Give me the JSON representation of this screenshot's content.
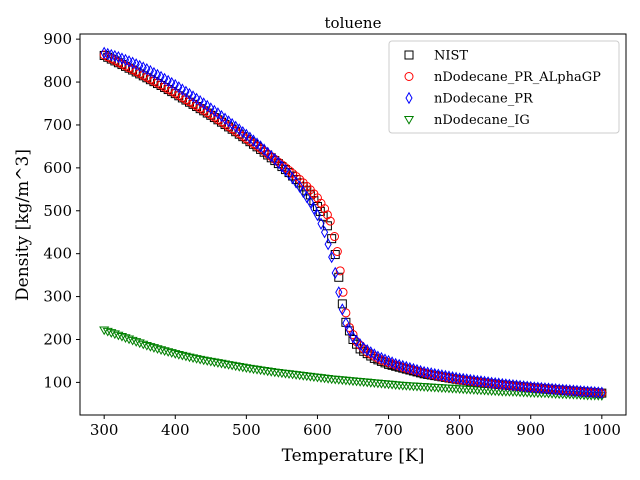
{
  "chart_data": {
    "type": "scatter",
    "title": "toluene",
    "xlabel": "Temperature [K]",
    "ylabel": "Density [kg/m^3]",
    "xlim": [
      266,
      1034
    ],
    "ylim": [
      24,
      912
    ],
    "xticks": [
      300,
      400,
      500,
      600,
      700,
      800,
      900,
      1000
    ],
    "yticks": [
      100,
      200,
      300,
      400,
      500,
      600,
      700,
      800,
      900
    ],
    "grid": false,
    "legend_position": "top-right",
    "series": [
      {
        "name": "NIST",
        "marker": "square",
        "color": "#000000",
        "points": [
          [
            300,
            862
          ],
          [
            320,
            845
          ],
          [
            340,
            828
          ],
          [
            360,
            810
          ],
          [
            380,
            792
          ],
          [
            400,
            773
          ],
          [
            420,
            753
          ],
          [
            440,
            733
          ],
          [
            460,
            712
          ],
          [
            480,
            690
          ],
          [
            500,
            667
          ],
          [
            520,
            643
          ],
          [
            540,
            617
          ],
          [
            560,
            589
          ],
          [
            575,
            565
          ],
          [
            590,
            537
          ],
          [
            600,
            510
          ],
          [
            608,
            487
          ],
          [
            614,
            465
          ],
          [
            620,
            435
          ],
          [
            625,
            398
          ],
          [
            630,
            345
          ],
          [
            635,
            283
          ],
          [
            640,
            240
          ],
          [
            650,
            200
          ],
          [
            660,
            178
          ],
          [
            680,
            156
          ],
          [
            700,
            142
          ],
          [
            750,
            120
          ],
          [
            800,
            106
          ],
          [
            850,
            96
          ],
          [
            900,
            88
          ],
          [
            950,
            81
          ],
          [
            1000,
            75
          ]
        ]
      },
      {
        "name": "nDodecane_PR_ALphaGP",
        "marker": "circle",
        "color": "#ff0000",
        "points": [
          [
            300,
            863
          ],
          [
            320,
            846
          ],
          [
            340,
            829
          ],
          [
            360,
            811
          ],
          [
            380,
            793
          ],
          [
            400,
            774
          ],
          [
            420,
            754
          ],
          [
            440,
            734
          ],
          [
            460,
            713
          ],
          [
            480,
            691
          ],
          [
            500,
            668
          ],
          [
            520,
            645
          ],
          [
            540,
            620
          ],
          [
            560,
            594
          ],
          [
            575,
            573
          ],
          [
            590,
            549
          ],
          [
            600,
            530
          ],
          [
            610,
            505
          ],
          [
            618,
            476
          ],
          [
            624,
            440
          ],
          [
            628,
            405
          ],
          [
            632,
            360
          ],
          [
            636,
            310
          ],
          [
            640,
            262
          ],
          [
            645,
            228
          ],
          [
            655,
            195
          ],
          [
            670,
            170
          ],
          [
            690,
            152
          ],
          [
            720,
            135
          ],
          [
            760,
            118
          ],
          [
            800,
            106
          ],
          [
            850,
            96
          ],
          [
            900,
            88
          ],
          [
            950,
            81
          ],
          [
            1000,
            75
          ]
        ]
      },
      {
        "name": "nDodecane_PR",
        "marker": "diamond",
        "color": "#0000ff",
        "points": [
          [
            300,
            868
          ],
          [
            320,
            858
          ],
          [
            340,
            845
          ],
          [
            360,
            830
          ],
          [
            380,
            812
          ],
          [
            400,
            793
          ],
          [
            420,
            772
          ],
          [
            440,
            750
          ],
          [
            460,
            727
          ],
          [
            480,
            702
          ],
          [
            500,
            677
          ],
          [
            520,
            650
          ],
          [
            540,
            620
          ],
          [
            560,
            586
          ],
          [
            575,
            556
          ],
          [
            590,
            520
          ],
          [
            600,
            490
          ],
          [
            610,
            450
          ],
          [
            615,
            422
          ],
          [
            620,
            392
          ],
          [
            625,
            355
          ],
          [
            630,
            310
          ],
          [
            635,
            270
          ],
          [
            640,
            238
          ],
          [
            650,
            205
          ],
          [
            665,
            180
          ],
          [
            685,
            160
          ],
          [
            710,
            143
          ],
          [
            750,
            124
          ],
          [
            800,
            109
          ],
          [
            850,
            98
          ],
          [
            900,
            89
          ],
          [
            950,
            82
          ],
          [
            1000,
            76
          ]
        ]
      },
      {
        "name": "nDodecane_IG",
        "marker": "triangle-down",
        "color": "#008000",
        "points": [
          [
            300,
            222
          ],
          [
            320,
            210
          ],
          [
            340,
            198
          ],
          [
            360,
            186
          ],
          [
            380,
            176
          ],
          [
            400,
            167
          ],
          [
            420,
            159
          ],
          [
            440,
            152
          ],
          [
            460,
            146
          ],
          [
            480,
            140
          ],
          [
            500,
            134
          ],
          [
            520,
            129
          ],
          [
            540,
            124
          ],
          [
            560,
            120
          ],
          [
            580,
            116
          ],
          [
            600,
            112
          ],
          [
            620,
            108
          ],
          [
            640,
            105
          ],
          [
            660,
            102
          ],
          [
            680,
            99
          ],
          [
            700,
            96
          ],
          [
            720,
            93
          ],
          [
            740,
            91
          ],
          [
            760,
            89
          ],
          [
            780,
            87
          ],
          [
            800,
            85
          ],
          [
            820,
            83
          ],
          [
            840,
            81
          ],
          [
            860,
            79
          ],
          [
            880,
            78
          ],
          [
            900,
            76
          ],
          [
            920,
            75
          ],
          [
            940,
            73
          ],
          [
            960,
            72
          ],
          [
            980,
            70
          ],
          [
            1000,
            69
          ]
        ]
      }
    ]
  }
}
